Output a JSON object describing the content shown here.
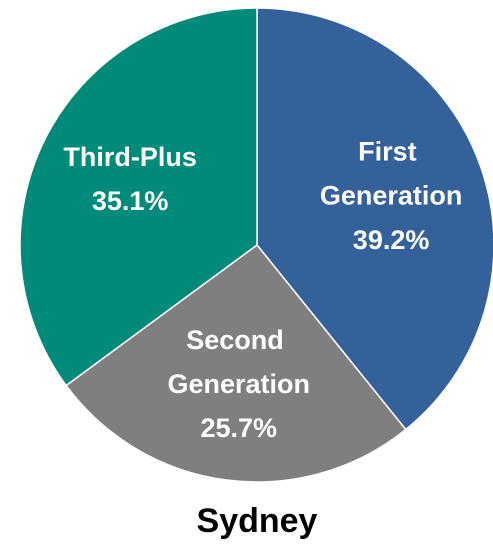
{
  "chart_data": {
    "type": "pie",
    "title": "Sydney",
    "categories": [
      "First Generation",
      "Second Generation",
      "Third-Plus"
    ],
    "values": [
      39.2,
      25.7,
      35.1
    ],
    "value_labels": [
      "39.2%",
      "25.7%",
      "35.1%"
    ],
    "colors": [
      "#35619a",
      "#7f7f7f",
      "#008a7a"
    ]
  }
}
